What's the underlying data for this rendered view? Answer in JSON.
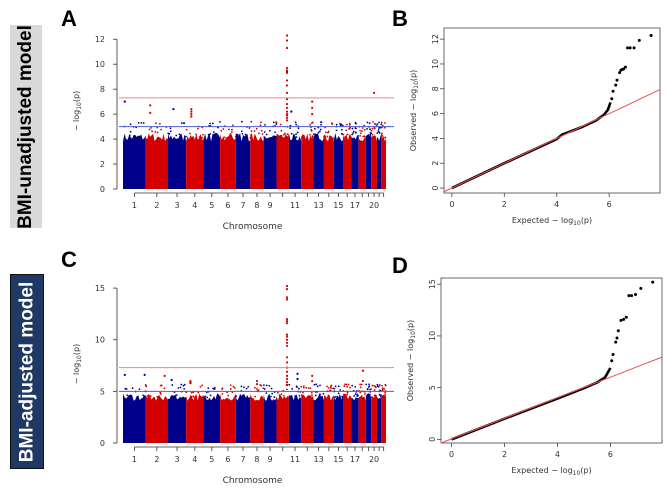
{
  "panels": {
    "A": {
      "letter": "A"
    },
    "B": {
      "letter": "B"
    },
    "C": {
      "letter": "C"
    },
    "D": {
      "letter": "D"
    }
  },
  "row_labels": {
    "top": "BMI-unadjusted model",
    "bottom": "BMI-adjusted model"
  },
  "colors": {
    "chr_blue": "#00008b",
    "chr_red": "#d40000",
    "sig_line": "#f08080",
    "sugg_line": "#4a5bd6",
    "qq_line": "#f05050",
    "qq_point": "#000000"
  },
  "chart_data": [
    {
      "id": "A",
      "type": "scatter",
      "subtype": "manhattan",
      "xlabel": "Chromosome",
      "ylabel": {
        "prefix": "− log",
        "sub": "10",
        "suffix": "(p)"
      },
      "ylim": [
        0,
        12.5
      ],
      "y_ticks": [
        "0",
        "2",
        "4",
        "6",
        "8",
        "10",
        "12"
      ],
      "y_tick_values": [
        0,
        2,
        4,
        6,
        8,
        10,
        12
      ],
      "chromosome_sizes_mb": [
        249,
        243,
        198,
        191,
        181,
        171,
        159,
        146,
        141,
        135,
        135,
        133,
        115,
        107,
        102,
        90,
        81,
        78,
        59,
        63,
        48,
        51
      ],
      "x_tick_labels": [
        "1",
        "2",
        "3",
        "4",
        "5",
        "6",
        "7",
        "8",
        "9",
        "11",
        "13",
        "15",
        "17",
        "20"
      ],
      "x_tick_chromosomes": [
        1,
        2,
        3,
        4,
        5,
        6,
        7,
        8,
        9,
        11,
        13,
        15,
        17,
        20
      ],
      "genome_wide_threshold": 7.3,
      "suggestive_threshold": 5,
      "band_level": 4.1,
      "top_hits": [
        {
          "chr": 10,
          "pos": 0.85,
          "values": [
            12.3,
            11.9,
            11.3,
            9.7,
            9.5,
            9.4,
            9.3,
            8.7,
            8.3,
            7.7,
            7.2,
            6.8,
            6.5,
            6.2,
            6.0,
            5.9,
            5.7,
            5.5
          ]
        },
        {
          "chr": 1,
          "pos": 0.08,
          "values": [
            7.0
          ]
        },
        {
          "chr": 2,
          "pos": 0.2,
          "values": [
            6.7,
            6.1
          ]
        },
        {
          "chr": 3,
          "pos": 0.3,
          "values": [
            6.4
          ]
        },
        {
          "chr": 4,
          "pos": 0.3,
          "values": [
            6.4,
            6.2,
            6.0,
            5.8
          ]
        },
        {
          "chr": 12,
          "pos": 0.9,
          "values": [
            7.0,
            6.5,
            6.0
          ]
        },
        {
          "chr": 11,
          "pos": 0.2,
          "values": [
            6.2
          ]
        },
        {
          "chr": 20,
          "pos": 0.5,
          "values": [
            7.7
          ]
        }
      ]
    },
    {
      "id": "B",
      "type": "scatter",
      "subtype": "qq",
      "xlabel": {
        "prefix": "Expected  − log",
        "sub": "10",
        "suffix": "(p)"
      },
      "ylabel": {
        "prefix": "Observed  − log",
        "sub": "10",
        "suffix": "(p)"
      },
      "xlim": [
        -0.3,
        7.94
      ],
      "ylim": [
        -0.4,
        12.9
      ],
      "x_ticks": [
        "0",
        "2",
        "4",
        "6"
      ],
      "x_tick_values": [
        0,
        2,
        4,
        6
      ],
      "y_ticks": [
        "0",
        "2",
        "4",
        "6",
        "8",
        "10",
        "12"
      ],
      "y_tick_values": [
        0,
        2,
        4,
        6,
        8,
        10,
        12
      ],
      "diagonal": true,
      "bulk_curve": [
        [
          0,
          0
        ],
        [
          2,
          2
        ],
        [
          4,
          3.95
        ],
        [
          4.2,
          4.3
        ],
        [
          5,
          4.95
        ],
        [
          5.5,
          5.45
        ],
        [
          5.8,
          5.9
        ],
        [
          5.95,
          6.3
        ],
        [
          6.05,
          6.9
        ]
      ],
      "tail_points": [
        [
          6.1,
          7.2
        ],
        [
          6.15,
          7.8
        ],
        [
          6.25,
          8.3
        ],
        [
          6.3,
          8.7
        ],
        [
          6.4,
          9.3
        ],
        [
          6.45,
          9.5
        ],
        [
          6.5,
          9.55
        ],
        [
          6.55,
          9.6
        ],
        [
          6.62,
          9.75
        ],
        [
          6.7,
          11.3
        ],
        [
          6.8,
          11.3
        ],
        [
          6.95,
          11.3
        ],
        [
          7.15,
          11.9
        ],
        [
          7.6,
          12.3
        ]
      ]
    },
    {
      "id": "C",
      "type": "scatter",
      "subtype": "manhattan",
      "xlabel": "Chromosome",
      "ylabel": {
        "prefix": "− log",
        "sub": "10",
        "suffix": "(p)"
      },
      "ylim": [
        0,
        15.3
      ],
      "y_ticks": [
        "0",
        "5",
        "10",
        "15"
      ],
      "y_tick_values": [
        0,
        5,
        10,
        15
      ],
      "chromosome_sizes_mb": [
        249,
        243,
        198,
        191,
        181,
        171,
        159,
        146,
        141,
        135,
        135,
        133,
        115,
        107,
        102,
        90,
        81,
        78,
        59,
        63,
        48,
        51
      ],
      "x_tick_labels": [
        "1",
        "2",
        "3",
        "4",
        "5",
        "6",
        "7",
        "8",
        "9",
        "11",
        "13",
        "15",
        "17",
        "20"
      ],
      "x_tick_chromosomes": [
        1,
        2,
        3,
        4,
        5,
        6,
        7,
        8,
        9,
        11,
        13,
        15,
        17,
        20
      ],
      "genome_wide_threshold": 7.3,
      "suggestive_threshold": 5,
      "band_level": 4.4,
      "top_hits": [
        {
          "chr": 10,
          "pos": 0.85,
          "values": [
            15.2,
            14.9,
            14.1,
            13.9,
            12.0,
            11.8,
            11.6,
            10.5,
            10.3,
            10.0,
            9.7,
            9.4,
            8.3,
            7.8,
            7.3,
            6.9,
            6.5,
            6.2,
            5.9,
            5.6
          ]
        },
        {
          "chr": 1,
          "pos": 0.08,
          "values": [
            6.6
          ]
        },
        {
          "chr": 1,
          "pos": 0.95,
          "values": [
            6.6
          ]
        },
        {
          "chr": 2,
          "pos": 0.85,
          "values": [
            6.5
          ]
        },
        {
          "chr": 3,
          "pos": 0.2,
          "values": [
            6.1
          ]
        },
        {
          "chr": 4,
          "pos": 0.25,
          "values": [
            6.0,
            5.9,
            5.8
          ]
        },
        {
          "chr": 8,
          "pos": 0.5,
          "values": [
            6.0,
            5.7
          ]
        },
        {
          "chr": 11,
          "pos": 0.7,
          "values": [
            6.7,
            6.2
          ]
        },
        {
          "chr": 12,
          "pos": 0.9,
          "values": [
            6.5,
            6.0
          ]
        },
        {
          "chr": 18,
          "pos": 0.6,
          "values": [
            7.0,
            6.0
          ]
        }
      ]
    },
    {
      "id": "D",
      "type": "scatter",
      "subtype": "qq",
      "xlabel": {
        "prefix": "Expected  − log",
        "sub": "10",
        "suffix": "(p)"
      },
      "ylabel": {
        "prefix": "Observed  − log",
        "sub": "10",
        "suffix": "(p)"
      },
      "xlim": [
        -0.4,
        7.95
      ],
      "ylim": [
        -0.35,
        15.6
      ],
      "x_ticks": [
        "0",
        "2",
        "4",
        "6"
      ],
      "x_tick_values": [
        0,
        2,
        4,
        6
      ],
      "y_ticks": [
        "0",
        "5",
        "10",
        "15"
      ],
      "y_tick_values": [
        0,
        5,
        10,
        15
      ],
      "diagonal": true,
      "bulk_curve": [
        [
          0,
          0
        ],
        [
          2,
          2
        ],
        [
          4,
          3.95
        ],
        [
          5,
          4.95
        ],
        [
          5.5,
          5.5
        ],
        [
          5.8,
          6.0
        ],
        [
          6.0,
          6.9
        ]
      ],
      "tail_points": [
        [
          6.05,
          7.6
        ],
        [
          6.1,
          8.2
        ],
        [
          6.2,
          9.4
        ],
        [
          6.25,
          9.8
        ],
        [
          6.3,
          10.5
        ],
        [
          6.4,
          11.5
        ],
        [
          6.5,
          11.6
        ],
        [
          6.6,
          11.8
        ],
        [
          6.7,
          13.9
        ],
        [
          6.8,
          13.9
        ],
        [
          6.95,
          14.0
        ],
        [
          7.15,
          14.6
        ],
        [
          7.6,
          15.2
        ]
      ]
    }
  ]
}
